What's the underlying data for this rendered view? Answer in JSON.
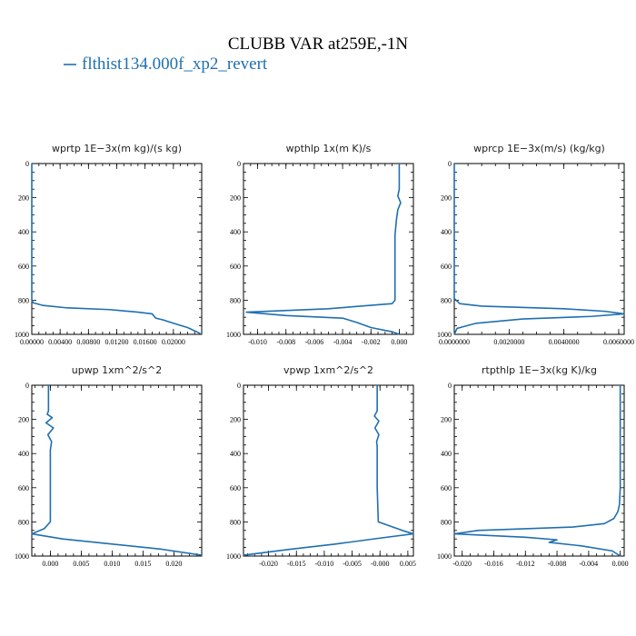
{
  "title": "CLUBB VAR at259E,-1N",
  "legend": {
    "label": "flthist134.000f_xp2_revert",
    "color": "#1f6fb0"
  },
  "chart_data": [
    {
      "type": "line",
      "title": "wprtp   1E−3x(m kg)/(s kg)",
      "xlim": [
        0,
        0.024
      ],
      "ylim": [
        1000,
        0
      ],
      "xticks": [
        0,
        0.004,
        0.008,
        0.012,
        0.016,
        0.02
      ],
      "xticklabels": [
        "0.00000",
        "0.00400",
        "0.00800",
        "0.01200",
        "0.01600",
        "0.02000"
      ],
      "yticks": [
        0,
        200,
        400,
        600,
        800,
        1000
      ],
      "series": [
        {
          "x": [
            0,
            0,
            0,
            0.0002,
            0.0015,
            0.005,
            0.011,
            0.015,
            0.017,
            0.0175,
            0.0185,
            0.02,
            0.022,
            0.0238
          ],
          "y": [
            0,
            700,
            800,
            815,
            830,
            845,
            855,
            870,
            880,
            905,
            915,
            935,
            960,
            995
          ]
        }
      ]
    },
    {
      "type": "line",
      "title": "wpthlp   1x(m K)/s",
      "xlim": [
        -0.011,
        0.001
      ],
      "ylim": [
        1000,
        0
      ],
      "xticks": [
        -0.01,
        -0.008,
        -0.006,
        -0.004,
        -0.002,
        0.0
      ],
      "xticklabels": [
        "-0.010",
        "-0.008",
        "-0.006",
        "-0.004",
        "-0.002",
        "0.000"
      ],
      "yticks": [
        0,
        200,
        400,
        600,
        800,
        1000
      ],
      "series": [
        {
          "x": [
            0.0,
            0.0,
            -0.0001,
            0.0001,
            -0.0001,
            -0.0002,
            -0.0003,
            -0.0003,
            -0.0003,
            -0.0005,
            -0.005,
            -0.0108,
            -0.008,
            -0.004,
            -0.003,
            -0.002,
            -0.0005,
            0.0
          ],
          "y": [
            0,
            150,
            190,
            230,
            270,
            330,
            420,
            600,
            800,
            820,
            850,
            870,
            890,
            905,
            930,
            960,
            985,
            1000
          ]
        }
      ]
    },
    {
      "type": "line",
      "title": "wprcp   1E−3x(m/s) (kg/kg)",
      "xlim": [
        0,
        0.0062
      ],
      "ylim": [
        1000,
        0
      ],
      "xticks": [
        0,
        0.002,
        0.004,
        0.006
      ],
      "xticklabels": [
        "0.0000000",
        "0.0020000",
        "0.0040000",
        "0.0060000"
      ],
      "yticks": [
        0,
        200,
        400,
        600,
        800,
        1000
      ],
      "series": [
        {
          "x": [
            0,
            0,
            0.0002,
            0.001,
            0.004,
            0.0055,
            0.0062,
            0.005,
            0.0025,
            0.0008,
            0.0001,
            0
          ],
          "y": [
            0,
            790,
            820,
            835,
            850,
            865,
            880,
            895,
            910,
            935,
            965,
            1000
          ]
        }
      ]
    },
    {
      "type": "line",
      "title": "upwp   1xm^2/s^2",
      "xlim": [
        -0.003,
        0.0245
      ],
      "ylim": [
        1000,
        0
      ],
      "xticks": [
        0,
        0.005,
        0.01,
        0.015,
        0.02
      ],
      "xticklabels": [
        "0.000",
        "0.005",
        "0.010",
        "0.015",
        "0.020"
      ],
      "yticks": [
        0,
        200,
        400,
        600,
        800,
        1000
      ],
      "series": [
        {
          "x": [
            -0.0003,
            -0.0003,
            -0.0005,
            0.0003,
            -0.0007,
            0.0005,
            -0.0004,
            0.0002,
            0.0,
            0.0,
            0.0,
            -0.001,
            -0.003,
            0.002,
            0.01,
            0.018,
            0.0245
          ],
          "y": [
            0,
            150,
            170,
            190,
            220,
            250,
            290,
            330,
            380,
            600,
            800,
            840,
            870,
            900,
            930,
            960,
            995
          ]
        }
      ]
    },
    {
      "type": "line",
      "title": "vpwp   1xm^2/s^2",
      "xlim": [
        -0.0245,
        0.006
      ],
      "ylim": [
        1000,
        0
      ],
      "xticks": [
        -0.02,
        -0.015,
        -0.01,
        -0.005,
        0.0,
        0.005
      ],
      "xticklabels": [
        "-0.020",
        "-0.015",
        "-0.010",
        "-0.005",
        "-0.000",
        "0.005"
      ],
      "yticks": [
        0,
        200,
        400,
        600,
        800,
        1000
      ],
      "series": [
        {
          "x": [
            -0.0005,
            -0.0005,
            -0.001,
            -0.0002,
            -0.0009,
            -0.0002,
            -0.0006,
            -0.0005,
            -0.0005,
            -0.0003,
            0.004,
            0.006,
            0.0,
            -0.008,
            -0.016,
            -0.0245
          ],
          "y": [
            0,
            150,
            180,
            210,
            250,
            290,
            330,
            360,
            600,
            800,
            850,
            870,
            895,
            930,
            960,
            995
          ]
        }
      ]
    },
    {
      "type": "line",
      "title": "rtpthlp   1E−3x(kg K)/kg",
      "xlim": [
        -0.021,
        0.0005
      ],
      "ylim": [
        1000,
        0
      ],
      "xticks": [
        -0.02,
        -0.016,
        -0.012,
        -0.008,
        -0.004,
        0.0
      ],
      "xticklabels": [
        "-0.020",
        "-0.016",
        "-0.012",
        "-0.008",
        "-0.004",
        "0.000"
      ],
      "yticks": [
        0,
        200,
        400,
        600,
        800,
        1000
      ],
      "series": [
        {
          "x": [
            0,
            0,
            -0.0001,
            -0.0003,
            -0.0008,
            -0.002,
            -0.006,
            -0.018,
            -0.021,
            -0.012,
            -0.008,
            -0.009,
            -0.005,
            -0.001,
            0.0
          ],
          "y": [
            0,
            600,
            700,
            740,
            780,
            810,
            830,
            850,
            870,
            890,
            905,
            920,
            940,
            970,
            1000
          ]
        }
      ]
    }
  ]
}
